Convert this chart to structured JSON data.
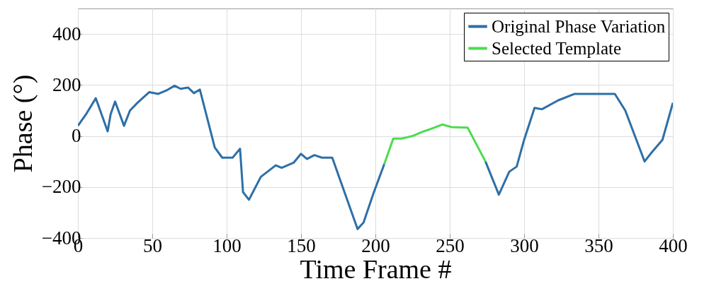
{
  "chart_data": {
    "type": "line",
    "xlabel": "Time Frame #",
    "ylabel": "Phase (°)",
    "xlim": [
      0,
      400
    ],
    "ylim": [
      -400,
      500
    ],
    "xticks": [
      0,
      50,
      100,
      150,
      200,
      250,
      300,
      350,
      400
    ],
    "yticks": [
      -400,
      -200,
      0,
      200,
      400
    ],
    "grid": true,
    "legend": "top right",
    "line_style": "solid",
    "series": [
      {
        "name": "Original Phase Variation",
        "color": "#2e6fa7",
        "x": [
          0,
          3,
          6,
          12,
          20,
          22,
          25,
          31,
          35,
          40,
          48,
          54,
          60,
          65,
          69,
          74,
          78,
          82,
          92,
          97,
          104,
          109,
          111,
          115,
          123,
          133,
          137,
          145,
          150,
          154,
          159,
          164,
          171,
          188,
          192,
          199,
          206,
          240,
          274,
          283,
          290,
          295,
          300,
          307,
          312,
          323,
          334,
          361,
          368,
          381,
          385,
          393,
          400
        ],
        "values": [
          40,
          65,
          90,
          148,
          18,
          85,
          135,
          40,
          100,
          130,
          172,
          165,
          180,
          197,
          185,
          190,
          168,
          182,
          -45,
          -85,
          -85,
          -50,
          -220,
          -250,
          -160,
          -115,
          -125,
          -105,
          -70,
          -90,
          -75,
          -85,
          -85,
          -365,
          -340,
          -220,
          -110,
          null,
          -100,
          -230,
          -140,
          -120,
          -15,
          110,
          105,
          140,
          165,
          165,
          100,
          -100,
          -70,
          -15,
          130
        ]
      },
      {
        "name": "Selected Template",
        "color": "#4cdc4c",
        "x": [
          206,
          212,
          218,
          225,
          231,
          236,
          245,
          251,
          262,
          274
        ],
        "values": [
          -110,
          -10,
          -10,
          0,
          15,
          25,
          45,
          35,
          33,
          -100
        ]
      }
    ]
  }
}
